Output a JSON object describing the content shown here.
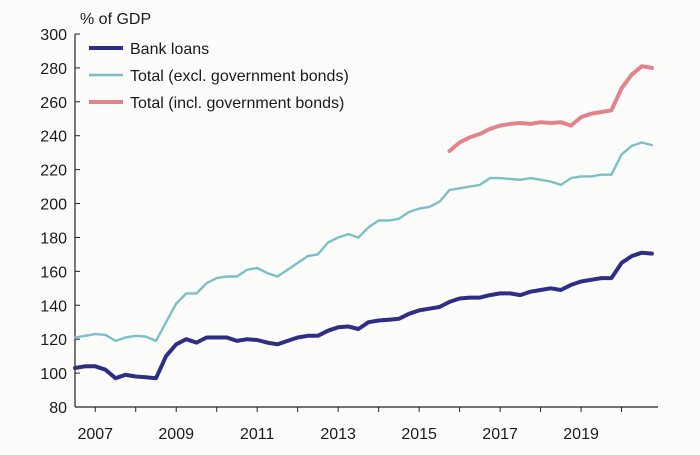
{
  "chart_data": {
    "type": "line",
    "ylabel": "% of GDP",
    "ylim": [
      80,
      300
    ],
    "yticks": [
      80,
      100,
      120,
      140,
      160,
      180,
      200,
      220,
      240,
      260,
      280,
      300
    ],
    "xlim": [
      2006.5,
      2020.9
    ],
    "xticks": [
      2007,
      2009,
      2011,
      2013,
      2015,
      2017,
      2019
    ],
    "xtick_labels": [
      "2007",
      "2009",
      "2011",
      "2013",
      "2015",
      "2017",
      "2019"
    ],
    "grid": false,
    "legend_position": "top-left",
    "series": [
      {
        "name": "Bank loans",
        "color": "#2e2e86",
        "x": [
          2006.5,
          2006.75,
          2007.0,
          2007.25,
          2007.5,
          2007.75,
          2008.0,
          2008.25,
          2008.5,
          2008.75,
          2009.0,
          2009.25,
          2009.5,
          2009.75,
          2010.0,
          2010.25,
          2010.5,
          2010.75,
          2011.0,
          2011.25,
          2011.5,
          2011.75,
          2012.0,
          2012.25,
          2012.5,
          2012.75,
          2013.0,
          2013.25,
          2013.5,
          2013.75,
          2014.0,
          2014.25,
          2014.5,
          2014.75,
          2015.0,
          2015.25,
          2015.5,
          2015.75,
          2016.0,
          2016.25,
          2016.5,
          2016.75,
          2017.0,
          2017.25,
          2017.5,
          2017.75,
          2018.0,
          2018.25,
          2018.5,
          2018.75,
          2019.0,
          2019.25,
          2019.5,
          2019.75,
          2020.0,
          2020.25,
          2020.5,
          2020.75
        ],
        "y": [
          103,
          104,
          104,
          102,
          97,
          99,
          98,
          97.5,
          97,
          110,
          117,
          120,
          118,
          121,
          121,
          121,
          119,
          120,
          119.5,
          118,
          117,
          119,
          121,
          122,
          122,
          125,
          127,
          127.5,
          126,
          130,
          131,
          131.5,
          132,
          135,
          137,
          138,
          139,
          142,
          144,
          144.5,
          144.5,
          146,
          147,
          147,
          146,
          148,
          149,
          150,
          149,
          152,
          154,
          155,
          156,
          156,
          165,
          169,
          171,
          170.5
        ]
      },
      {
        "name": "Total (excl. government bonds)",
        "color": "#7cc0c7",
        "x": [
          2006.5,
          2006.75,
          2007.0,
          2007.25,
          2007.5,
          2007.75,
          2008.0,
          2008.25,
          2008.5,
          2008.75,
          2009.0,
          2009.25,
          2009.5,
          2009.75,
          2010.0,
          2010.25,
          2010.5,
          2010.75,
          2011.0,
          2011.25,
          2011.5,
          2011.75,
          2012.0,
          2012.25,
          2012.5,
          2012.75,
          2013.0,
          2013.25,
          2013.5,
          2013.75,
          2014.0,
          2014.25,
          2014.5,
          2014.75,
          2015.0,
          2015.25,
          2015.5,
          2015.75,
          2016.0,
          2016.25,
          2016.5,
          2016.75,
          2017.0,
          2017.25,
          2017.5,
          2017.75,
          2018.0,
          2018.25,
          2018.5,
          2018.75,
          2019.0,
          2019.25,
          2019.5,
          2019.75,
          2020.0,
          2020.25,
          2020.5,
          2020.75
        ],
        "y": [
          121,
          122,
          123,
          122.5,
          119,
          121,
          122,
          121.5,
          119,
          130,
          141,
          147,
          147,
          153,
          156,
          157,
          157,
          161,
          162,
          159,
          157,
          161,
          165,
          169,
          170,
          177,
          180,
          182,
          180,
          186,
          190,
          190,
          191,
          195,
          197,
          198,
          201,
          208,
          209,
          210,
          211,
          215,
          215,
          214.5,
          214,
          215,
          214,
          213,
          211,
          215,
          216,
          216,
          217,
          217,
          229,
          234,
          236,
          234.5
        ]
      },
      {
        "name": "Total (incl. government bonds)",
        "color": "#e2838a",
        "x": [
          2015.75,
          2016.0,
          2016.25,
          2016.5,
          2016.75,
          2017.0,
          2017.25,
          2017.5,
          2017.75,
          2018.0,
          2018.25,
          2018.5,
          2018.75,
          2019.0,
          2019.25,
          2019.5,
          2019.75,
          2020.0,
          2020.25,
          2020.5,
          2020.75
        ],
        "y": [
          231,
          236,
          239,
          241,
          244,
          246,
          247,
          247.5,
          247,
          248,
          247.5,
          248,
          246,
          251,
          253,
          254,
          255,
          268,
          276,
          281,
          280
        ]
      }
    ]
  }
}
